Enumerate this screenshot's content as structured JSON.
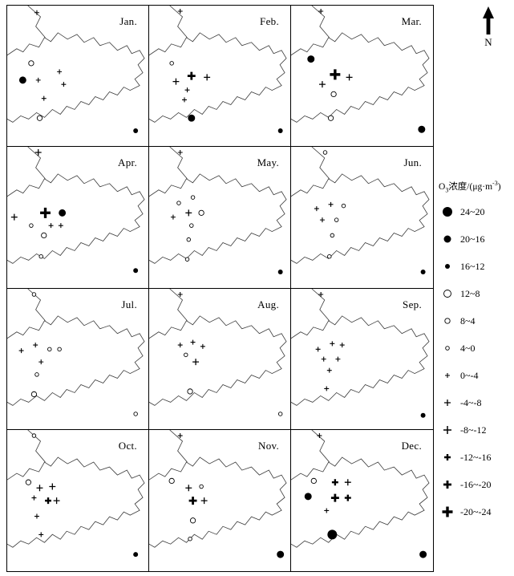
{
  "figure": {
    "north_label": "N"
  },
  "chart_data": {
    "type": "map-grid",
    "description": "Twelve monthly small-multiple maps (Jan-Dec) of a province outline with station symbols showing ozone concentration change; graduated circles for positive values and graduated crosses for negative values.",
    "layout": {
      "rows": 4,
      "cols": 3,
      "panel_label_position": "top-right"
    },
    "legend": {
      "title_parts": {
        "pre": "O",
        "sub": "3",
        "mid": "浓度/(μg·m",
        "sup": "-3",
        "post": ")"
      },
      "items": [
        {
          "cat": "f3",
          "symbol": "filled-circle-large",
          "label": "24~20"
        },
        {
          "cat": "f2",
          "symbol": "filled-circle-medium",
          "label": "20~16"
        },
        {
          "cat": "f1",
          "symbol": "filled-circle-small",
          "label": "16~12"
        },
        {
          "cat": "o3",
          "symbol": "open-circle-large",
          "label": "12~8"
        },
        {
          "cat": "o2",
          "symbol": "open-circle-medium",
          "label": "8~4"
        },
        {
          "cat": "o1",
          "symbol": "open-circle-small",
          "label": "4~0"
        },
        {
          "cat": "p1",
          "symbol": "cross-small-thin",
          "label": "0~-4"
        },
        {
          "cat": "p2",
          "symbol": "cross-medium-thin",
          "label": "-4~-8"
        },
        {
          "cat": "p3",
          "symbol": "cross-large-thin",
          "label": "-8~-12"
        },
        {
          "cat": "pb1",
          "symbol": "cross-small-bold",
          "label": "-12~-16"
        },
        {
          "cat": "pb2",
          "symbol": "cross-medium-bold",
          "label": "-16~-20"
        },
        {
          "cat": "pb3",
          "symbol": "cross-large-bold",
          "label": "-20~-24"
        }
      ]
    },
    "panels": [
      {
        "month": "Jan.",
        "points": [
          {
            "x": 0.21,
            "y": 0.05,
            "cat": "p1"
          },
          {
            "x": 0.17,
            "y": 0.41,
            "cat": "o2"
          },
          {
            "x": 0.11,
            "y": 0.53,
            "cat": "f2"
          },
          {
            "x": 0.22,
            "y": 0.53,
            "cat": "p1"
          },
          {
            "x": 0.37,
            "y": 0.47,
            "cat": "p1"
          },
          {
            "x": 0.4,
            "y": 0.56,
            "cat": "p1"
          },
          {
            "x": 0.26,
            "y": 0.66,
            "cat": "p1"
          },
          {
            "x": 0.23,
            "y": 0.8,
            "cat": "o2"
          },
          {
            "x": 0.91,
            "y": 0.89,
            "cat": "f1"
          }
        ]
      },
      {
        "month": "Feb.",
        "points": [
          {
            "x": 0.22,
            "y": 0.04,
            "cat": "p1"
          },
          {
            "x": 0.16,
            "y": 0.41,
            "cat": "o1"
          },
          {
            "x": 0.3,
            "y": 0.5,
            "cat": "pb2"
          },
          {
            "x": 0.19,
            "y": 0.54,
            "cat": "p2"
          },
          {
            "x": 0.41,
            "y": 0.51,
            "cat": "p2"
          },
          {
            "x": 0.27,
            "y": 0.6,
            "cat": "p1"
          },
          {
            "x": 0.25,
            "y": 0.67,
            "cat": "p1"
          },
          {
            "x": 0.3,
            "y": 0.8,
            "cat": "f2"
          },
          {
            "x": 0.93,
            "y": 0.89,
            "cat": "f1"
          }
        ]
      },
      {
        "month": "Mar.",
        "points": [
          {
            "x": 0.21,
            "y": 0.04,
            "cat": "p1"
          },
          {
            "x": 0.14,
            "y": 0.38,
            "cat": "f2"
          },
          {
            "x": 0.31,
            "y": 0.49,
            "cat": "pb3"
          },
          {
            "x": 0.22,
            "y": 0.56,
            "cat": "p2"
          },
          {
            "x": 0.41,
            "y": 0.51,
            "cat": "p2"
          },
          {
            "x": 0.3,
            "y": 0.63,
            "cat": "o2"
          },
          {
            "x": 0.28,
            "y": 0.8,
            "cat": "o2"
          },
          {
            "x": 0.92,
            "y": 0.88,
            "cat": "f2"
          }
        ]
      },
      {
        "month": "Apr.",
        "points": [
          {
            "x": 0.22,
            "y": 0.04,
            "cat": "p2"
          },
          {
            "x": 0.05,
            "y": 0.5,
            "cat": "p2"
          },
          {
            "x": 0.27,
            "y": 0.47,
            "cat": "pb3"
          },
          {
            "x": 0.39,
            "y": 0.47,
            "cat": "f2"
          },
          {
            "x": 0.17,
            "y": 0.56,
            "cat": "o1"
          },
          {
            "x": 0.31,
            "y": 0.56,
            "cat": "p1"
          },
          {
            "x": 0.38,
            "y": 0.56,
            "cat": "p1"
          },
          {
            "x": 0.26,
            "y": 0.63,
            "cat": "o2"
          },
          {
            "x": 0.24,
            "y": 0.78,
            "cat": "o1"
          },
          {
            "x": 0.91,
            "y": 0.88,
            "cat": "f1"
          }
        ]
      },
      {
        "month": "May.",
        "points": [
          {
            "x": 0.22,
            "y": 0.04,
            "cat": "p1"
          },
          {
            "x": 0.21,
            "y": 0.4,
            "cat": "o1"
          },
          {
            "x": 0.31,
            "y": 0.36,
            "cat": "o1"
          },
          {
            "x": 0.17,
            "y": 0.5,
            "cat": "p1"
          },
          {
            "x": 0.28,
            "y": 0.47,
            "cat": "p2"
          },
          {
            "x": 0.37,
            "y": 0.47,
            "cat": "o2"
          },
          {
            "x": 0.3,
            "y": 0.56,
            "cat": "o1"
          },
          {
            "x": 0.28,
            "y": 0.66,
            "cat": "o1"
          },
          {
            "x": 0.27,
            "y": 0.8,
            "cat": "o1"
          },
          {
            "x": 0.93,
            "y": 0.89,
            "cat": "f1"
          }
        ]
      },
      {
        "month": "Jun.",
        "points": [
          {
            "x": 0.24,
            "y": 0.04,
            "cat": "o1"
          },
          {
            "x": 0.18,
            "y": 0.44,
            "cat": "p1"
          },
          {
            "x": 0.28,
            "y": 0.41,
            "cat": "p1"
          },
          {
            "x": 0.37,
            "y": 0.42,
            "cat": "o1"
          },
          {
            "x": 0.22,
            "y": 0.52,
            "cat": "p1"
          },
          {
            "x": 0.32,
            "y": 0.52,
            "cat": "o1"
          },
          {
            "x": 0.29,
            "y": 0.63,
            "cat": "o1"
          },
          {
            "x": 0.27,
            "y": 0.78,
            "cat": "o1"
          },
          {
            "x": 0.93,
            "y": 0.89,
            "cat": "f1"
          }
        ]
      },
      {
        "month": "Jul.",
        "points": [
          {
            "x": 0.19,
            "y": 0.04,
            "cat": "o1"
          },
          {
            "x": 0.1,
            "y": 0.44,
            "cat": "p1"
          },
          {
            "x": 0.2,
            "y": 0.4,
            "cat": "p1"
          },
          {
            "x": 0.3,
            "y": 0.43,
            "cat": "o1"
          },
          {
            "x": 0.37,
            "y": 0.43,
            "cat": "o1"
          },
          {
            "x": 0.24,
            "y": 0.52,
            "cat": "p1"
          },
          {
            "x": 0.21,
            "y": 0.61,
            "cat": "o1"
          },
          {
            "x": 0.19,
            "y": 0.75,
            "cat": "o2"
          },
          {
            "x": 0.91,
            "y": 0.89,
            "cat": "o1"
          }
        ]
      },
      {
        "month": "Aug.",
        "points": [
          {
            "x": 0.22,
            "y": 0.04,
            "cat": "p1"
          },
          {
            "x": 0.22,
            "y": 0.4,
            "cat": "p1"
          },
          {
            "x": 0.31,
            "y": 0.38,
            "cat": "p1"
          },
          {
            "x": 0.38,
            "y": 0.41,
            "cat": "p1"
          },
          {
            "x": 0.26,
            "y": 0.47,
            "cat": "o1"
          },
          {
            "x": 0.33,
            "y": 0.52,
            "cat": "p2"
          },
          {
            "x": 0.29,
            "y": 0.73,
            "cat": "o2"
          },
          {
            "x": 0.93,
            "y": 0.89,
            "cat": "o1"
          }
        ]
      },
      {
        "month": "Sep.",
        "points": [
          {
            "x": 0.21,
            "y": 0.04,
            "cat": "p1"
          },
          {
            "x": 0.19,
            "y": 0.43,
            "cat": "p1"
          },
          {
            "x": 0.29,
            "y": 0.39,
            "cat": "p1"
          },
          {
            "x": 0.36,
            "y": 0.4,
            "cat": "p1"
          },
          {
            "x": 0.23,
            "y": 0.5,
            "cat": "p1"
          },
          {
            "x": 0.33,
            "y": 0.5,
            "cat": "p1"
          },
          {
            "x": 0.27,
            "y": 0.58,
            "cat": "p1"
          },
          {
            "x": 0.25,
            "y": 0.71,
            "cat": "p1"
          },
          {
            "x": 0.93,
            "y": 0.9,
            "cat": "f1"
          }
        ]
      },
      {
        "month": "Oct.",
        "points": [
          {
            "x": 0.19,
            "y": 0.04,
            "cat": "o1"
          },
          {
            "x": 0.15,
            "y": 0.37,
            "cat": "o2"
          },
          {
            "x": 0.23,
            "y": 0.41,
            "cat": "p2"
          },
          {
            "x": 0.32,
            "y": 0.4,
            "cat": "p2"
          },
          {
            "x": 0.19,
            "y": 0.48,
            "cat": "p1"
          },
          {
            "x": 0.29,
            "y": 0.5,
            "cat": "pb1"
          },
          {
            "x": 0.35,
            "y": 0.5,
            "cat": "p2"
          },
          {
            "x": 0.21,
            "y": 0.61,
            "cat": "p1"
          },
          {
            "x": 0.24,
            "y": 0.74,
            "cat": "p1"
          },
          {
            "x": 0.91,
            "y": 0.88,
            "cat": "f1"
          }
        ]
      },
      {
        "month": "Nov.",
        "points": [
          {
            "x": 0.22,
            "y": 0.04,
            "cat": "p1"
          },
          {
            "x": 0.16,
            "y": 0.36,
            "cat": "o2"
          },
          {
            "x": 0.28,
            "y": 0.41,
            "cat": "p2"
          },
          {
            "x": 0.37,
            "y": 0.4,
            "cat": "o1"
          },
          {
            "x": 0.31,
            "y": 0.5,
            "cat": "pb2"
          },
          {
            "x": 0.39,
            "y": 0.5,
            "cat": "p2"
          },
          {
            "x": 0.31,
            "y": 0.64,
            "cat": "o2"
          },
          {
            "x": 0.29,
            "y": 0.77,
            "cat": "o1"
          },
          {
            "x": 0.93,
            "y": 0.88,
            "cat": "f2"
          }
        ]
      },
      {
        "month": "Dec.",
        "points": [
          {
            "x": 0.2,
            "y": 0.04,
            "cat": "p1"
          },
          {
            "x": 0.16,
            "y": 0.36,
            "cat": "o2"
          },
          {
            "x": 0.31,
            "y": 0.37,
            "cat": "pb1"
          },
          {
            "x": 0.4,
            "y": 0.37,
            "cat": "p2"
          },
          {
            "x": 0.12,
            "y": 0.47,
            "cat": "f2"
          },
          {
            "x": 0.31,
            "y": 0.48,
            "cat": "pb2"
          },
          {
            "x": 0.4,
            "y": 0.48,
            "cat": "pb1"
          },
          {
            "x": 0.25,
            "y": 0.57,
            "cat": "p1"
          },
          {
            "x": 0.29,
            "y": 0.74,
            "cat": "f3"
          },
          {
            "x": 0.93,
            "y": 0.88,
            "cat": "f2"
          }
        ]
      }
    ]
  }
}
